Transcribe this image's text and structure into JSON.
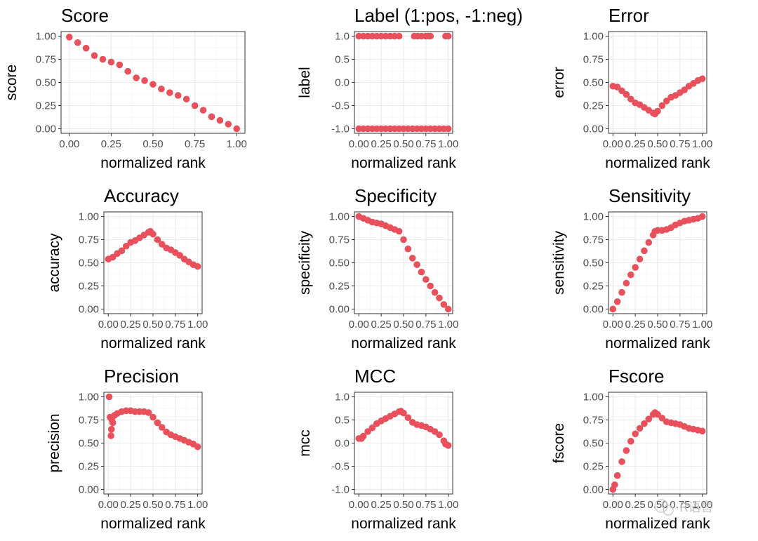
{
  "chart_data": [
    {
      "title": "Score",
      "type": "scatter",
      "xlabel": "normalized rank",
      "ylabel": "score",
      "xlim": [
        0,
        1
      ],
      "ylim": [
        0,
        1
      ],
      "xticks": [
        0,
        0.25,
        0.5,
        0.75,
        1
      ],
      "yticks": [
        0,
        0.25,
        0.5,
        0.75,
        1
      ],
      "xtick_labels": [
        "0.00",
        "0.25",
        "0.50",
        "0.75",
        "1.00"
      ],
      "ytick_labels": [
        "0.00",
        "0.25",
        "0.50",
        "0.75",
        "1.00"
      ],
      "points": [
        [
          0.0,
          0.99
        ],
        [
          0.05,
          0.93
        ],
        [
          0.1,
          0.87
        ],
        [
          0.15,
          0.79
        ],
        [
          0.2,
          0.75
        ],
        [
          0.25,
          0.72
        ],
        [
          0.3,
          0.69
        ],
        [
          0.35,
          0.62
        ],
        [
          0.4,
          0.55
        ],
        [
          0.45,
          0.52
        ],
        [
          0.5,
          0.48
        ],
        [
          0.55,
          0.43
        ],
        [
          0.6,
          0.39
        ],
        [
          0.65,
          0.36
        ],
        [
          0.7,
          0.32
        ],
        [
          0.75,
          0.25
        ],
        [
          0.8,
          0.2
        ],
        [
          0.85,
          0.13
        ],
        [
          0.9,
          0.09
        ],
        [
          0.95,
          0.05
        ],
        [
          1.0,
          0.0
        ]
      ]
    },
    {
      "title": "Label (1:pos, -1:neg)",
      "type": "scatter",
      "xlabel": "normalized rank",
      "ylabel": "label",
      "xlim": [
        0,
        1
      ],
      "ylim": [
        -1,
        1
      ],
      "xticks": [
        0,
        0.25,
        0.5,
        0.75,
        1
      ],
      "yticks": [
        -1,
        -0.5,
        0,
        0.5,
        1
      ],
      "xtick_labels": [
        "0.00",
        "0.25",
        "0.50",
        "0.75",
        "1.00"
      ],
      "ytick_labels": [
        "-1.0",
        "-0.5",
        "0.0",
        "0.5",
        "1.0"
      ],
      "points": [
        [
          0.0,
          1
        ],
        [
          0.05,
          1
        ],
        [
          0.1,
          1
        ],
        [
          0.15,
          1
        ],
        [
          0.2,
          1
        ],
        [
          0.25,
          1
        ],
        [
          0.3,
          1
        ],
        [
          0.35,
          1
        ],
        [
          0.4,
          1
        ],
        [
          0.45,
          1
        ],
        [
          0.62,
          1
        ],
        [
          0.66,
          1
        ],
        [
          0.7,
          1
        ],
        [
          0.75,
          1
        ],
        [
          0.78,
          1
        ],
        [
          0.8,
          1
        ],
        [
          0.97,
          1
        ],
        [
          1.0,
          1
        ],
        [
          0.0,
          -1
        ],
        [
          0.05,
          -1
        ],
        [
          0.1,
          -1
        ],
        [
          0.15,
          -1
        ],
        [
          0.2,
          -1
        ],
        [
          0.25,
          -1
        ],
        [
          0.3,
          -1
        ],
        [
          0.35,
          -1
        ],
        [
          0.4,
          -1
        ],
        [
          0.45,
          -1
        ],
        [
          0.5,
          -1
        ],
        [
          0.55,
          -1
        ],
        [
          0.6,
          -1
        ],
        [
          0.65,
          -1
        ],
        [
          0.7,
          -1
        ],
        [
          0.75,
          -1
        ],
        [
          0.8,
          -1
        ],
        [
          0.85,
          -1
        ],
        [
          0.9,
          -1
        ],
        [
          0.95,
          -1
        ],
        [
          1.0,
          -1
        ]
      ]
    },
    {
      "title": "Error",
      "type": "scatter",
      "xlabel": "normalized rank",
      "ylabel": "error",
      "xlim": [
        0,
        1
      ],
      "ylim": [
        0,
        1
      ],
      "xticks": [
        0,
        0.25,
        0.5,
        0.75,
        1
      ],
      "yticks": [
        0,
        0.25,
        0.5,
        0.75,
        1
      ],
      "xtick_labels": [
        "0.00",
        "0.25",
        "0.50",
        "0.75",
        "1.00"
      ],
      "ytick_labels": [
        "0.00",
        "0.25",
        "0.50",
        "0.75",
        "1.00"
      ],
      "points": [
        [
          0.0,
          0.46
        ],
        [
          0.05,
          0.45
        ],
        [
          0.1,
          0.41
        ],
        [
          0.15,
          0.37
        ],
        [
          0.2,
          0.32
        ],
        [
          0.25,
          0.28
        ],
        [
          0.3,
          0.26
        ],
        [
          0.35,
          0.23
        ],
        [
          0.4,
          0.2
        ],
        [
          0.45,
          0.17
        ],
        [
          0.47,
          0.16
        ],
        [
          0.5,
          0.19
        ],
        [
          0.55,
          0.25
        ],
        [
          0.6,
          0.3
        ],
        [
          0.65,
          0.34
        ],
        [
          0.7,
          0.36
        ],
        [
          0.75,
          0.39
        ],
        [
          0.8,
          0.42
        ],
        [
          0.85,
          0.46
        ],
        [
          0.9,
          0.49
        ],
        [
          0.95,
          0.52
        ],
        [
          1.0,
          0.54
        ]
      ]
    },
    {
      "title": "Accuracy",
      "type": "scatter",
      "xlabel": "normalized rank",
      "ylabel": "accuracy",
      "xlim": [
        0,
        1
      ],
      "ylim": [
        0,
        1
      ],
      "xticks": [
        0,
        0.25,
        0.5,
        0.75,
        1
      ],
      "yticks": [
        0,
        0.25,
        0.5,
        0.75,
        1
      ],
      "xtick_labels": [
        "0.00",
        "0.25",
        "0.50",
        "0.75",
        "1.00"
      ],
      "ytick_labels": [
        "0.00",
        "0.25",
        "0.50",
        "0.75",
        "1.00"
      ],
      "points": [
        [
          0.0,
          0.54
        ],
        [
          0.05,
          0.56
        ],
        [
          0.1,
          0.6
        ],
        [
          0.15,
          0.63
        ],
        [
          0.2,
          0.68
        ],
        [
          0.25,
          0.72
        ],
        [
          0.3,
          0.74
        ],
        [
          0.35,
          0.77
        ],
        [
          0.4,
          0.8
        ],
        [
          0.45,
          0.83
        ],
        [
          0.47,
          0.84
        ],
        [
          0.5,
          0.81
        ],
        [
          0.55,
          0.75
        ],
        [
          0.6,
          0.7
        ],
        [
          0.65,
          0.66
        ],
        [
          0.7,
          0.64
        ],
        [
          0.75,
          0.61
        ],
        [
          0.8,
          0.58
        ],
        [
          0.85,
          0.54
        ],
        [
          0.9,
          0.51
        ],
        [
          0.95,
          0.48
        ],
        [
          1.0,
          0.46
        ]
      ]
    },
    {
      "title": "Specificity",
      "type": "scatter",
      "xlabel": "normalized rank",
      "ylabel": "specificity",
      "xlim": [
        0,
        1
      ],
      "ylim": [
        0,
        1
      ],
      "xticks": [
        0,
        0.25,
        0.5,
        0.75,
        1
      ],
      "yticks": [
        0,
        0.25,
        0.5,
        0.75,
        1
      ],
      "xtick_labels": [
        "0.00",
        "0.25",
        "0.50",
        "0.75",
        "1.00"
      ],
      "ytick_labels": [
        "0.00",
        "0.25",
        "0.50",
        "0.75",
        "1.00"
      ],
      "points": [
        [
          0.0,
          1.0
        ],
        [
          0.05,
          0.98
        ],
        [
          0.1,
          0.96
        ],
        [
          0.15,
          0.94
        ],
        [
          0.2,
          0.93
        ],
        [
          0.25,
          0.92
        ],
        [
          0.3,
          0.9
        ],
        [
          0.35,
          0.88
        ],
        [
          0.4,
          0.86
        ],
        [
          0.45,
          0.84
        ],
        [
          0.5,
          0.75
        ],
        [
          0.55,
          0.65
        ],
        [
          0.6,
          0.55
        ],
        [
          0.65,
          0.48
        ],
        [
          0.7,
          0.4
        ],
        [
          0.75,
          0.32
        ],
        [
          0.8,
          0.25
        ],
        [
          0.85,
          0.18
        ],
        [
          0.9,
          0.12
        ],
        [
          0.95,
          0.05
        ],
        [
          1.0,
          0.0
        ]
      ]
    },
    {
      "title": "Sensitivity",
      "type": "scatter",
      "xlabel": "normalized rank",
      "ylabel": "sensitivity",
      "xlim": [
        0,
        1
      ],
      "ylim": [
        0,
        1
      ],
      "xticks": [
        0,
        0.25,
        0.5,
        0.75,
        1
      ],
      "yticks": [
        0,
        0.25,
        0.5,
        0.75,
        1
      ],
      "xtick_labels": [
        "0.00",
        "0.25",
        "0.50",
        "0.75",
        "1.00"
      ],
      "ytick_labels": [
        "0.00",
        "0.25",
        "0.50",
        "0.75",
        "1.00"
      ],
      "points": [
        [
          0.0,
          0.0
        ],
        [
          0.05,
          0.08
        ],
        [
          0.1,
          0.18
        ],
        [
          0.15,
          0.28
        ],
        [
          0.2,
          0.37
        ],
        [
          0.25,
          0.45
        ],
        [
          0.3,
          0.54
        ],
        [
          0.35,
          0.63
        ],
        [
          0.4,
          0.72
        ],
        [
          0.45,
          0.8
        ],
        [
          0.47,
          0.84
        ],
        [
          0.5,
          0.85
        ],
        [
          0.55,
          0.85
        ],
        [
          0.6,
          0.86
        ],
        [
          0.65,
          0.88
        ],
        [
          0.7,
          0.91
        ],
        [
          0.75,
          0.93
        ],
        [
          0.8,
          0.95
        ],
        [
          0.85,
          0.96
        ],
        [
          0.9,
          0.97
        ],
        [
          0.95,
          0.98
        ],
        [
          1.0,
          1.0
        ]
      ]
    },
    {
      "title": "Precision",
      "type": "scatter",
      "xlabel": "normalized rank",
      "ylabel": "precision",
      "xlim": [
        0,
        1
      ],
      "ylim": [
        0,
        1
      ],
      "xticks": [
        0,
        0.25,
        0.5,
        0.75,
        1
      ],
      "yticks": [
        0,
        0.25,
        0.5,
        0.75,
        1
      ],
      "xtick_labels": [
        "0.00",
        "0.25",
        "0.50",
        "0.75",
        "1.00"
      ],
      "ytick_labels": [
        "0.00",
        "0.25",
        "0.50",
        "0.75",
        "1.00"
      ],
      "points": [
        [
          0.01,
          1.0
        ],
        [
          0.02,
          0.78
        ],
        [
          0.03,
          0.58
        ],
        [
          0.035,
          0.65
        ],
        [
          0.04,
          0.75
        ],
        [
          0.05,
          0.72
        ],
        [
          0.07,
          0.8
        ],
        [
          0.1,
          0.82
        ],
        [
          0.15,
          0.84
        ],
        [
          0.2,
          0.85
        ],
        [
          0.25,
          0.85
        ],
        [
          0.3,
          0.84
        ],
        [
          0.35,
          0.84
        ],
        [
          0.4,
          0.84
        ],
        [
          0.45,
          0.83
        ],
        [
          0.5,
          0.78
        ],
        [
          0.55,
          0.72
        ],
        [
          0.6,
          0.67
        ],
        [
          0.65,
          0.62
        ],
        [
          0.7,
          0.59
        ],
        [
          0.75,
          0.57
        ],
        [
          0.8,
          0.55
        ],
        [
          0.85,
          0.53
        ],
        [
          0.9,
          0.51
        ],
        [
          0.95,
          0.49
        ],
        [
          1.0,
          0.46
        ]
      ]
    },
    {
      "title": "MCC",
      "type": "scatter",
      "xlabel": "normalized rank",
      "ylabel": "mcc",
      "xlim": [
        0,
        1
      ],
      "ylim": [
        -1,
        1
      ],
      "xticks": [
        0,
        0.25,
        0.5,
        0.75,
        1
      ],
      "yticks": [
        -1,
        -0.5,
        0,
        0.5,
        1
      ],
      "xtick_labels": [
        "0.00",
        "0.25",
        "0.50",
        "0.75",
        "1.00"
      ],
      "ytick_labels": [
        "-1.0",
        "-0.5",
        "0.0",
        "0.5",
        "1.0"
      ],
      "points": [
        [
          0.0,
          0.1
        ],
        [
          0.03,
          0.1
        ],
        [
          0.05,
          0.15
        ],
        [
          0.1,
          0.25
        ],
        [
          0.15,
          0.33
        ],
        [
          0.2,
          0.42
        ],
        [
          0.25,
          0.48
        ],
        [
          0.3,
          0.53
        ],
        [
          0.35,
          0.58
        ],
        [
          0.4,
          0.63
        ],
        [
          0.45,
          0.68
        ],
        [
          0.47,
          0.69
        ],
        [
          0.5,
          0.65
        ],
        [
          0.55,
          0.55
        ],
        [
          0.6,
          0.45
        ],
        [
          0.65,
          0.4
        ],
        [
          0.7,
          0.38
        ],
        [
          0.75,
          0.35
        ],
        [
          0.8,
          0.3
        ],
        [
          0.85,
          0.25
        ],
        [
          0.9,
          0.18
        ],
        [
          0.95,
          0.05
        ],
        [
          0.97,
          -0.02
        ],
        [
          1.0,
          -0.05
        ]
      ]
    },
    {
      "title": "Fscore",
      "type": "scatter",
      "xlabel": "normalized rank",
      "ylabel": "fscore",
      "xlim": [
        0,
        1
      ],
      "ylim": [
        0,
        1
      ],
      "xticks": [
        0,
        0.25,
        0.5,
        0.75,
        1
      ],
      "yticks": [
        0,
        0.25,
        0.5,
        0.75,
        1
      ],
      "xtick_labels": [
        "0.00",
        "0.25",
        "0.50",
        "0.75",
        "1.00"
      ],
      "ytick_labels": [
        "0.00",
        "0.25",
        "0.50",
        "0.75",
        "1.00"
      ],
      "points": [
        [
          0.0,
          0.0
        ],
        [
          0.02,
          0.05
        ],
        [
          0.05,
          0.15
        ],
        [
          0.1,
          0.3
        ],
        [
          0.15,
          0.42
        ],
        [
          0.2,
          0.52
        ],
        [
          0.25,
          0.6
        ],
        [
          0.3,
          0.66
        ],
        [
          0.35,
          0.71
        ],
        [
          0.4,
          0.76
        ],
        [
          0.45,
          0.81
        ],
        [
          0.47,
          0.83
        ],
        [
          0.5,
          0.81
        ],
        [
          0.55,
          0.77
        ],
        [
          0.6,
          0.73
        ],
        [
          0.65,
          0.72
        ],
        [
          0.7,
          0.71
        ],
        [
          0.75,
          0.7
        ],
        [
          0.8,
          0.68
        ],
        [
          0.85,
          0.66
        ],
        [
          0.9,
          0.65
        ],
        [
          0.95,
          0.64
        ],
        [
          1.0,
          0.63
        ]
      ]
    }
  ],
  "style": {
    "point_color": "#e8505b",
    "background": "#ffffff",
    "panel_border": "#333333"
  },
  "watermark": "R语言"
}
